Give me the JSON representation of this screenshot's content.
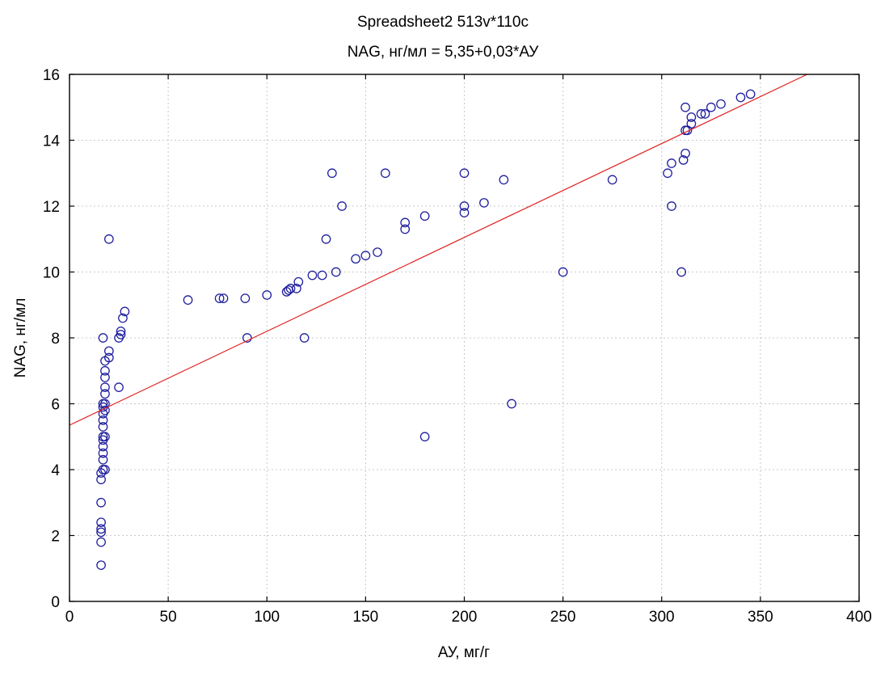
{
  "colors": {
    "point": "#1f1f9e",
    "regression": "#e02020",
    "grid": "#c8c8c8",
    "background": "#ffffff"
  },
  "chart_data": {
    "type": "scatter",
    "title": "Spreadsheet2 513v*110c",
    "subtitle": "NAG, нг/мл = 5,35+0,03*АУ",
    "xlabel": "АУ, мг/г",
    "ylabel": "NAG, нг/мл",
    "xlim": [
      0,
      400
    ],
    "ylim": [
      0,
      16
    ],
    "xticks": [
      0,
      50,
      100,
      150,
      200,
      250,
      300,
      350,
      400
    ],
    "yticks": [
      0,
      2,
      4,
      6,
      8,
      10,
      12,
      14,
      16
    ],
    "grid": true,
    "regression": {
      "intercept": 5.35,
      "slope": 0.0285
    },
    "points": [
      [
        16,
        1.1
      ],
      [
        16,
        1.8
      ],
      [
        16,
        2.1
      ],
      [
        16,
        2.2
      ],
      [
        16,
        2.4
      ],
      [
        16,
        3.0
      ],
      [
        16,
        3.7
      ],
      [
        16,
        3.9
      ],
      [
        17,
        4.0
      ],
      [
        17,
        4.3
      ],
      [
        17,
        4.5
      ],
      [
        17,
        4.7
      ],
      [
        17,
        4.9
      ],
      [
        17,
        5.0
      ],
      [
        17,
        5.3
      ],
      [
        17,
        5.5
      ],
      [
        17,
        5.7
      ],
      [
        17,
        5.9
      ],
      [
        17,
        6.0
      ],
      [
        18,
        4.0
      ],
      [
        18,
        5.0
      ],
      [
        18,
        5.8
      ],
      [
        18,
        6.0
      ],
      [
        18,
        6.3
      ],
      [
        18,
        6.5
      ],
      [
        18,
        6.8
      ],
      [
        18,
        7.0
      ],
      [
        18,
        7.3
      ],
      [
        17,
        8.0
      ],
      [
        20,
        7.4
      ],
      [
        20,
        7.6
      ],
      [
        20,
        11.0
      ],
      [
        25,
        6.5
      ],
      [
        25,
        8.0
      ],
      [
        26,
        8.1
      ],
      [
        26,
        8.2
      ],
      [
        27,
        8.6
      ],
      [
        28,
        8.8
      ],
      [
        60,
        9.15
      ],
      [
        76,
        9.2
      ],
      [
        78,
        9.2
      ],
      [
        89,
        9.2
      ],
      [
        90,
        8.0
      ],
      [
        100,
        9.3
      ],
      [
        110,
        9.4
      ],
      [
        111,
        9.45
      ],
      [
        112,
        9.5
      ],
      [
        115,
        9.5
      ],
      [
        116,
        9.7
      ],
      [
        119,
        8.0
      ],
      [
        123,
        9.9
      ],
      [
        128,
        9.9
      ],
      [
        130,
        11.0
      ],
      [
        133,
        13.0
      ],
      [
        135,
        10.0
      ],
      [
        138,
        12.0
      ],
      [
        145,
        10.4
      ],
      [
        150,
        10.5
      ],
      [
        156,
        10.6
      ],
      [
        160,
        13.0
      ],
      [
        170,
        11.3
      ],
      [
        170,
        11.5
      ],
      [
        180,
        11.7
      ],
      [
        180,
        5.0
      ],
      [
        200,
        11.8
      ],
      [
        200,
        12.0
      ],
      [
        200,
        13.0
      ],
      [
        210,
        12.1
      ],
      [
        220,
        12.8
      ],
      [
        224,
        6.0
      ],
      [
        250,
        10.0
      ],
      [
        275,
        12.8
      ],
      [
        303,
        13.0
      ],
      [
        305,
        13.3
      ],
      [
        305,
        12.0
      ],
      [
        310,
        10.0
      ],
      [
        311,
        13.4
      ],
      [
        312,
        13.6
      ],
      [
        312,
        14.3
      ],
      [
        312,
        15.0
      ],
      [
        313,
        14.3
      ],
      [
        315,
        14.5
      ],
      [
        315,
        14.7
      ],
      [
        320,
        14.8
      ],
      [
        322,
        14.8
      ],
      [
        325,
        15.0
      ],
      [
        330,
        15.1
      ],
      [
        340,
        15.3
      ],
      [
        345,
        15.4
      ]
    ]
  }
}
